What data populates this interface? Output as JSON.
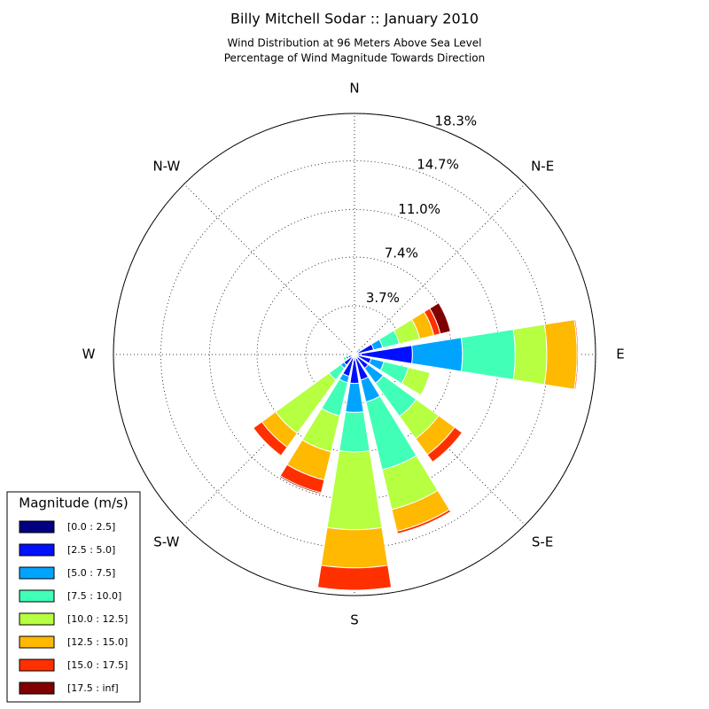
{
  "chart_data": {
    "type": "windrose",
    "title": "Billy Mitchell Sodar :: January 2010",
    "subtitle": [
      "Wind Distribution at 96 Meters Above Sea Level",
      "Percentage of Wind Magnitude Towards Direction"
    ],
    "categories": [
      "N",
      null,
      "N-E",
      null,
      "E",
      null,
      "S-E",
      null,
      "S",
      null,
      "S-W",
      null,
      "W",
      null,
      "N-W",
      null
    ],
    "ylim": [
      0,
      18.3
    ],
    "yticks": [
      {
        "value": 3.7,
        "label": "3.7%"
      },
      {
        "value": 7.4,
        "label": "7.4%"
      },
      {
        "value": 11.0,
        "label": "11.0%"
      },
      {
        "value": 14.7,
        "label": "14.7%"
      },
      {
        "value": 18.3,
        "label": "18.3%"
      }
    ],
    "grid": true,
    "legend_title": "Magnitude (m/s)",
    "legend_position": "lower left",
    "series": [
      {
        "name": "[0.0 : 2.5]",
        "color": "#000080",
        "values": [
          0.1,
          0.1,
          0.1,
          0.3,
          0.5,
          0.3,
          0.3,
          0.3,
          0.4,
          0.3,
          0.3,
          0.2,
          0.1,
          0.1,
          0.1,
          0.1
        ]
      },
      {
        "name": "[2.5 : 5.0]",
        "color": "#0010ff",
        "values": [
          0.1,
          0.1,
          0.3,
          1.2,
          3.9,
          1.0,
          1.0,
          1.7,
          1.8,
          1.4,
          0.7,
          0.3,
          0,
          0,
          0,
          0
        ]
      },
      {
        "name": "[5.0 : 7.5]",
        "color": "#00a4ff",
        "values": [
          0,
          0,
          0.2,
          0.7,
          3.8,
          1.0,
          1.4,
          1.7,
          2.2,
          0.5,
          0.3,
          0.2,
          0,
          0,
          0,
          0
        ]
      },
      {
        "name": "[7.5 : 10.0]",
        "color": "#41ffb6",
        "values": [
          0,
          0,
          0,
          1.3,
          4.0,
          1.9,
          3.1,
          5.3,
          3.0,
          2.6,
          1.1,
          0.2,
          0,
          0,
          0,
          0
        ]
      },
      {
        "name": "[10.0 : 12.5]",
        "color": "#b6ff41",
        "values": [
          0.1,
          0,
          0,
          1.6,
          2.4,
          1.7,
          2.1,
          3.1,
          5.9,
          2.8,
          5.0,
          0,
          0.1,
          0,
          0,
          0
        ]
      },
      {
        "name": "[12.5 : 15.0]",
        "color": "#ffb900",
        "values": [
          0,
          0,
          0,
          1.1,
          2.3,
          0,
          1.5,
          1.7,
          2.9,
          2.2,
          1.3,
          0,
          0.1,
          0,
          0,
          0
        ]
      },
      {
        "name": "[15.0 : 17.5]",
        "color": "#ff3000",
        "values": [
          0,
          0,
          0,
          0.5,
          0.1,
          0,
          0.7,
          0.2,
          1.7,
          1.0,
          0.8,
          0,
          0,
          0,
          0,
          0
        ]
      },
      {
        "name": "[17.5 : inf]",
        "color": "#800000",
        "values": [
          0,
          0,
          0,
          0.8,
          0,
          0,
          0,
          0,
          0,
          0.1,
          0,
          0,
          0,
          0,
          0,
          0
        ]
      }
    ]
  }
}
